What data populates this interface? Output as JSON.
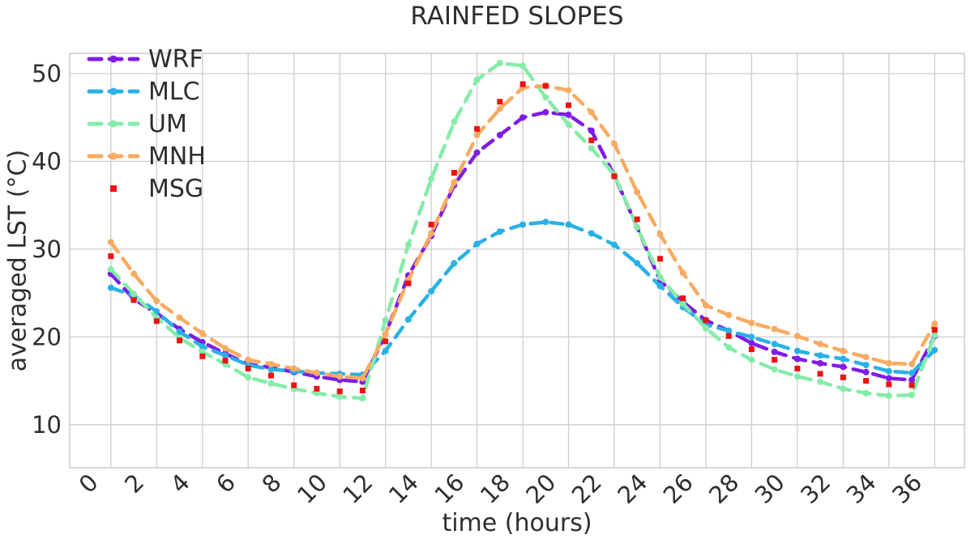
{
  "chart_data": {
    "type": "line",
    "title": "RAINFED SLOPES",
    "xlabel": "time (hours)",
    "ylabel": "averaged LST (°C)",
    "x": [
      0,
      1,
      2,
      3,
      4,
      5,
      6,
      7,
      8,
      9,
      10,
      11,
      12,
      13,
      14,
      15,
      16,
      17,
      18,
      19,
      20,
      21,
      22,
      23,
      24,
      25,
      26,
      27,
      28,
      29,
      30,
      31,
      32,
      33,
      34,
      35,
      36
    ],
    "xticks": [
      0,
      2,
      4,
      6,
      8,
      10,
      12,
      14,
      16,
      18,
      20,
      22,
      24,
      26,
      28,
      30,
      32,
      34,
      36
    ],
    "yticks": [
      10,
      20,
      30,
      40,
      50
    ],
    "xlim": [
      -1.8,
      37.3
    ],
    "ylim": [
      5.1,
      52.3
    ],
    "grid": true,
    "legend_position": "upper left",
    "series": [
      {
        "name": "WRF",
        "color": "#7e1de4",
        "line": "dashed",
        "marker": "circle",
        "values": [
          27.2,
          24.3,
          22.7,
          20.9,
          19.4,
          18.1,
          16.9,
          16.5,
          16.0,
          15.5,
          15.1,
          14.9,
          20.3,
          27.0,
          31.5,
          37.3,
          41.0,
          43.0,
          45.0,
          45.6,
          45.3,
          43.5,
          38.4,
          32.5,
          26.4,
          24.0,
          21.9,
          20.7,
          19.3,
          18.3,
          17.5,
          17.0,
          16.6,
          16.0,
          15.3,
          15.1,
          20.1
        ]
      },
      {
        "name": "MLC",
        "color": "#29b1e6",
        "line": "dashed",
        "marker": "circle",
        "values": [
          25.6,
          24.7,
          22.9,
          20.6,
          18.9,
          17.9,
          16.8,
          16.3,
          16.1,
          15.9,
          15.8,
          15.7,
          18.4,
          22.0,
          25.2,
          28.4,
          30.6,
          32.0,
          32.8,
          33.1,
          32.8,
          31.8,
          30.5,
          28.4,
          25.8,
          23.4,
          21.4,
          20.7,
          20.0,
          19.2,
          18.4,
          17.9,
          17.5,
          16.8,
          16.1,
          15.9,
          18.5
        ]
      },
      {
        "name": "UM",
        "color": "#85eca8",
        "line": "dashed",
        "marker": "circle",
        "values": [
          27.7,
          24.9,
          22.2,
          19.9,
          18.3,
          16.9,
          15.4,
          14.7,
          14.1,
          13.6,
          13.2,
          13.0,
          21.9,
          30.5,
          38.0,
          44.5,
          49.3,
          51.2,
          50.9,
          47.3,
          44.2,
          41.5,
          38.5,
          32.5,
          26.8,
          23.8,
          21.0,
          18.8,
          17.4,
          16.3,
          15.5,
          14.9,
          14.1,
          13.6,
          13.3,
          13.4,
          20.2
        ]
      },
      {
        "name": "MNH",
        "color": "#f7ab62",
        "line": "dashed",
        "marker": "circle",
        "values": [
          30.8,
          27.2,
          24.1,
          22.2,
          20.4,
          18.7,
          17.4,
          16.9,
          16.4,
          15.9,
          15.5,
          15.3,
          20.3,
          26.5,
          31.8,
          37.6,
          43.0,
          46.0,
          48.4,
          48.6,
          48.1,
          45.6,
          42.0,
          36.5,
          31.7,
          27.3,
          23.6,
          22.5,
          21.6,
          20.9,
          20.1,
          19.2,
          18.4,
          17.7,
          17.0,
          16.9,
          21.5
        ]
      },
      {
        "name": "MSG",
        "color": "#ee1111",
        "line": "none",
        "marker": "square",
        "values": [
          29.2,
          24.2,
          21.8,
          19.6,
          17.8,
          17.3,
          16.4,
          15.6,
          14.5,
          14.1,
          13.8,
          13.9,
          19.5,
          26.1,
          32.8,
          38.7,
          43.7,
          46.8,
          48.8,
          48.6,
          46.4,
          42.4,
          38.3,
          33.4,
          28.9,
          24.4,
          21.9,
          20.1,
          18.6,
          17.4,
          16.4,
          15.8,
          15.4,
          15.0,
          14.6,
          14.5,
          20.8
        ]
      }
    ]
  },
  "styles": {
    "background": "#ffffff",
    "grid_color": "#cdcdcd",
    "spine_color": "#c9c9c9",
    "text_color": "#2e2e2e"
  }
}
